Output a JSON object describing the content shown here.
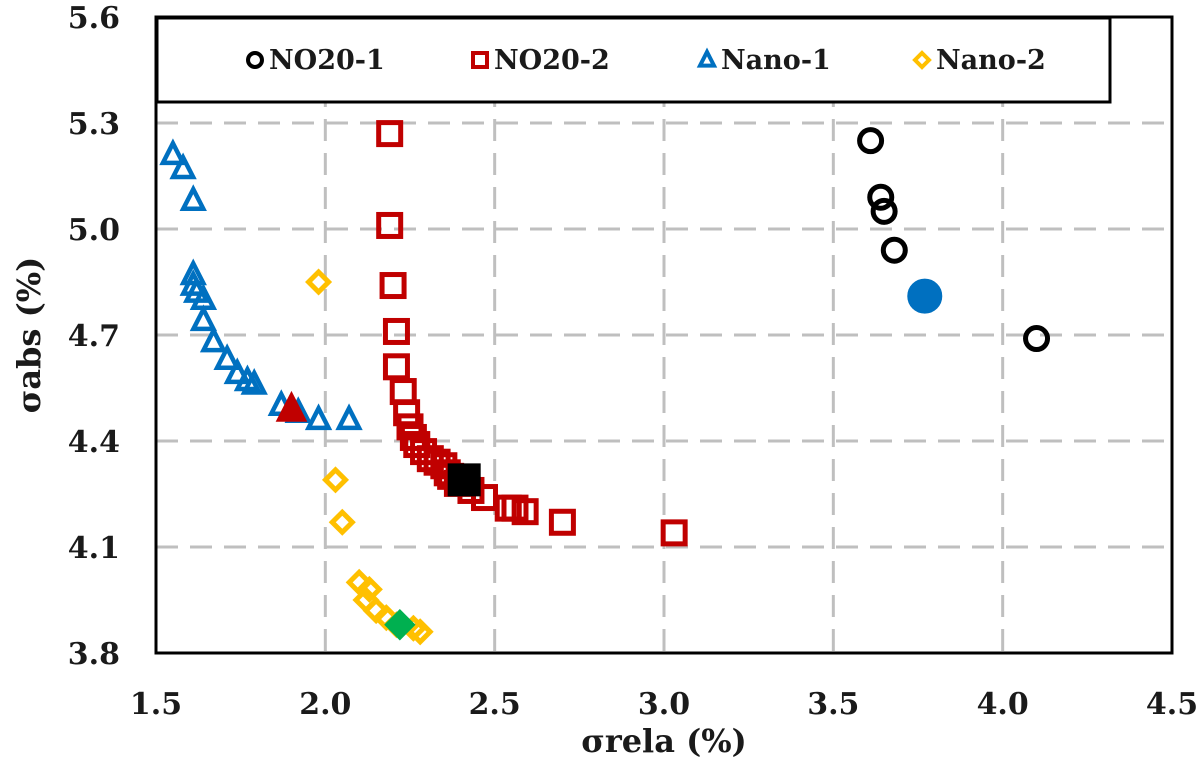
{
  "chart_data": {
    "type": "scatter",
    "title": "",
    "xlabel": "σrela (%)",
    "ylabel": "σabs (%)",
    "xlim": [
      1.5,
      4.5
    ],
    "ylim": [
      3.8,
      5.6
    ],
    "x_ticks": [
      "1.5",
      "2.0",
      "2.5",
      "3.0",
      "3.5",
      "4.0",
      "4.5"
    ],
    "y_ticks": [
      "3.8",
      "4.1",
      "4.4",
      "4.7",
      "5.0",
      "5.3",
      "5.6"
    ],
    "grid": true,
    "legend_position": "top",
    "series": [
      {
        "name": "NO20-1",
        "marker": "circle",
        "color": "#000000",
        "points": [
          [
            3.61,
            5.25
          ],
          [
            3.64,
            5.09
          ],
          [
            3.65,
            5.05
          ],
          [
            3.68,
            4.94
          ],
          [
            4.1,
            4.69
          ]
        ]
      },
      {
        "name": "NO20-2",
        "marker": "square",
        "color": "#c00000",
        "points": [
          [
            2.19,
            5.27
          ],
          [
            2.19,
            5.01
          ],
          [
            2.2,
            4.84
          ],
          [
            2.21,
            4.71
          ],
          [
            2.21,
            4.61
          ],
          [
            2.23,
            4.54
          ],
          [
            2.24,
            4.48
          ],
          [
            2.25,
            4.44
          ],
          [
            2.26,
            4.41
          ],
          [
            2.27,
            4.39
          ],
          [
            2.29,
            4.37
          ],
          [
            2.31,
            4.35
          ],
          [
            2.33,
            4.34
          ],
          [
            2.35,
            4.33
          ],
          [
            2.36,
            4.31
          ],
          [
            2.37,
            4.3
          ],
          [
            2.39,
            4.28
          ],
          [
            2.43,
            4.26
          ],
          [
            2.47,
            4.24
          ],
          [
            2.54,
            4.21
          ],
          [
            2.56,
            4.21
          ],
          [
            2.59,
            4.2
          ],
          [
            2.7,
            4.17
          ],
          [
            3.03,
            4.14
          ]
        ]
      },
      {
        "name": "Nano-1",
        "marker": "triangle",
        "color": "#0070c0",
        "points": [
          [
            1.55,
            5.21
          ],
          [
            1.58,
            5.17
          ],
          [
            1.61,
            5.08
          ],
          [
            1.61,
            4.87
          ],
          [
            1.61,
            4.84
          ],
          [
            1.62,
            4.82
          ],
          [
            1.64,
            4.8
          ],
          [
            1.64,
            4.74
          ],
          [
            1.67,
            4.68
          ],
          [
            1.71,
            4.63
          ],
          [
            1.74,
            4.59
          ],
          [
            1.77,
            4.57
          ],
          [
            1.79,
            4.56
          ],
          [
            1.87,
            4.5
          ],
          [
            1.92,
            4.48
          ],
          [
            1.98,
            4.46
          ],
          [
            2.07,
            4.46
          ]
        ]
      },
      {
        "name": "Nano-2",
        "marker": "diamond",
        "color": "#ffc000",
        "points": [
          [
            1.98,
            4.85
          ],
          [
            2.03,
            4.29
          ],
          [
            2.05,
            4.17
          ],
          [
            2.1,
            4.0
          ],
          [
            2.13,
            3.98
          ],
          [
            2.12,
            3.95
          ],
          [
            2.15,
            3.92
          ],
          [
            2.18,
            3.9
          ],
          [
            2.21,
            3.88
          ],
          [
            2.26,
            3.87
          ],
          [
            2.28,
            3.86
          ]
        ]
      }
    ],
    "highlight_points": [
      {
        "label": "Nano-1 selected",
        "marker": "triangle",
        "color": "#c00000",
        "x": 1.9,
        "y": 4.49
      },
      {
        "label": "NO20-2 selected",
        "marker": "square",
        "color": "#000000",
        "x": 2.41,
        "y": 4.29
      },
      {
        "label": "NO20-1 selected",
        "marker": "circle",
        "color": "#0070c0",
        "x": 3.77,
        "y": 4.81
      },
      {
        "label": "Nano-2 selected",
        "marker": "diamond",
        "color": "#00b050",
        "x": 2.22,
        "y": 3.88
      }
    ]
  }
}
